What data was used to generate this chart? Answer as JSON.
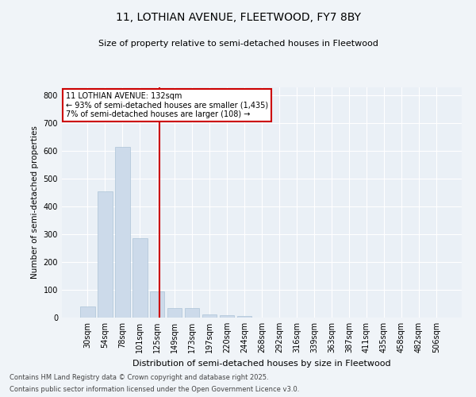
{
  "title1": "11, LOTHIAN AVENUE, FLEETWOOD, FY7 8BY",
  "title2": "Size of property relative to semi-detached houses in Fleetwood",
  "xlabel": "Distribution of semi-detached houses by size in Fleetwood",
  "ylabel": "Number of semi-detached properties",
  "bins": [
    "30sqm",
    "54sqm",
    "78sqm",
    "101sqm",
    "125sqm",
    "149sqm",
    "173sqm",
    "197sqm",
    "220sqm",
    "244sqm",
    "268sqm",
    "292sqm",
    "316sqm",
    "339sqm",
    "363sqm",
    "387sqm",
    "411sqm",
    "435sqm",
    "458sqm",
    "482sqm",
    "506sqm"
  ],
  "values": [
    40,
    455,
    615,
    285,
    95,
    35,
    35,
    12,
    10,
    5,
    1,
    0,
    0,
    0,
    0,
    0,
    0,
    0,
    0,
    0,
    0
  ],
  "bar_color": "#ccdaea",
  "bar_edge_color": "#adc4d8",
  "vline_color": "#cc0000",
  "vline_pos": 4.15,
  "annotation_title": "11 LOTHIAN AVENUE: 132sqm",
  "annotation_line2": "← 93% of semi-detached houses are smaller (1,435)",
  "annotation_line3": "7% of semi-detached houses are larger (108) →",
  "annotation_box_color": "#cc0000",
  "ylim": [
    0,
    830
  ],
  "yticks": [
    0,
    100,
    200,
    300,
    400,
    500,
    600,
    700,
    800
  ],
  "background_color": "#eaf0f6",
  "grid_color": "#ffffff",
  "fig_facecolor": "#f0f4f8",
  "footer1": "Contains HM Land Registry data © Crown copyright and database right 2025.",
  "footer2": "Contains public sector information licensed under the Open Government Licence v3.0."
}
